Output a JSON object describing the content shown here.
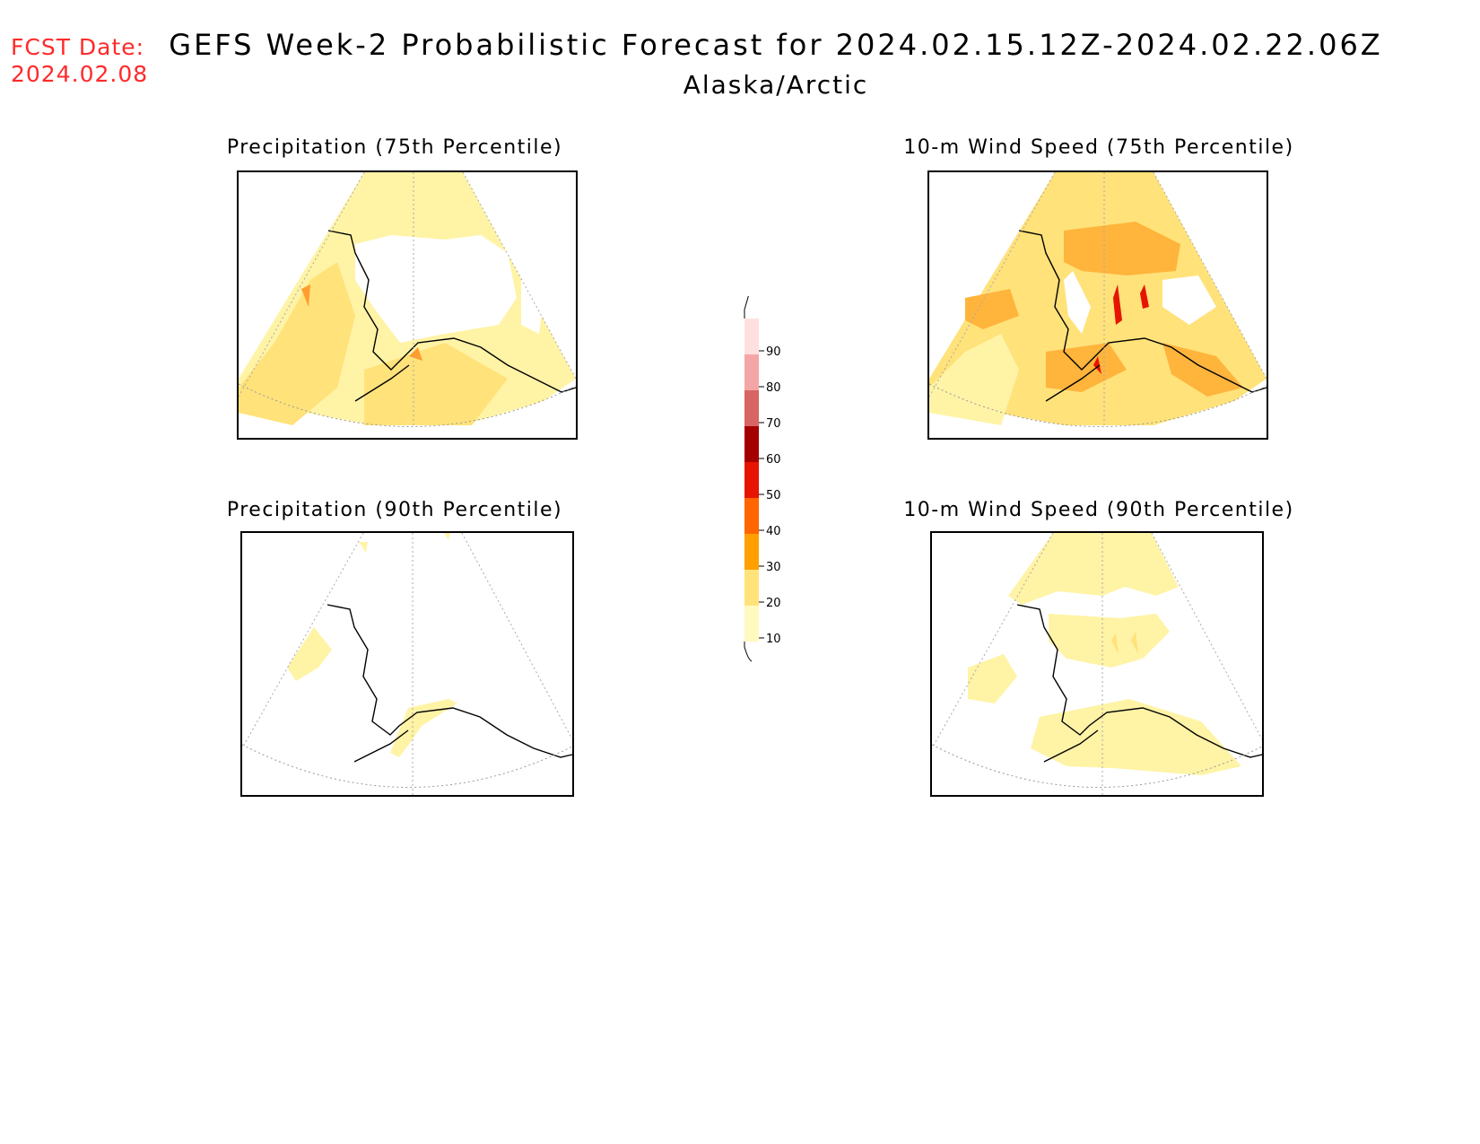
{
  "header": {
    "fcst_label": "FCST Date:",
    "fcst_date": "2024.02.08",
    "title": "GEFS Week-2 Probabilistic Forecast for 2024.02.15.12Z-2024.02.22.06Z",
    "subtitle": "Alaska/Arctic"
  },
  "panels": [
    {
      "title": "Precipitation (75th Percentile)"
    },
    {
      "title": "10-m Wind Speed (75th Percentile)"
    },
    {
      "title": "Precipitation (90th Percentile)"
    },
    {
      "title": "10-m Wind Speed (90th Percentile)"
    }
  ],
  "legend": {
    "levels": [
      10,
      20,
      30,
      40,
      50,
      60,
      70,
      80,
      90
    ],
    "labels": [
      "10",
      "20",
      "30",
      "40",
      "50",
      "60",
      "70",
      "80",
      "90"
    ],
    "colors": [
      "#fffabf",
      "#ffe27a",
      "#ffa000",
      "#ff6600",
      "#e61400",
      "#a50000",
      "#d86464",
      "#f4a6a6",
      "#ffe0e0"
    ]
  }
}
